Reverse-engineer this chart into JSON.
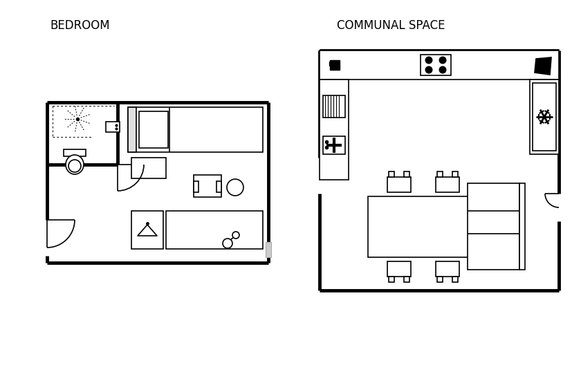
{
  "title_bedroom": "BEDROOM",
  "title_communal": "COMMUNAL SPACE",
  "bg_color": "#ffffff",
  "wall_lw": 3.5,
  "thin_lw": 1.2
}
